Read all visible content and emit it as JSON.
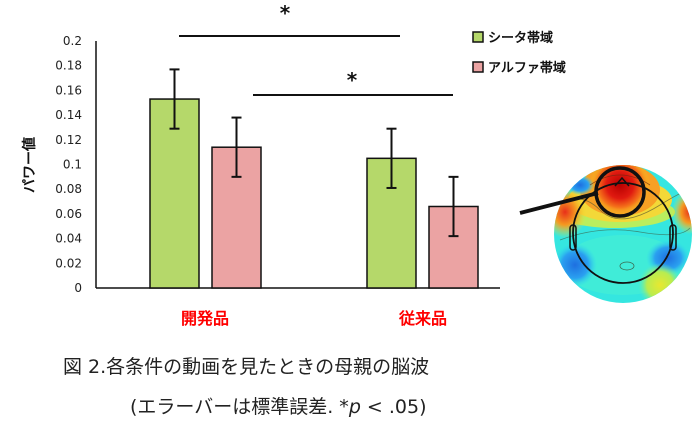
{
  "chart_data": {
    "type": "bar",
    "title": "",
    "xlabel": "",
    "ylabel": "パワー値",
    "ylim": [
      0,
      0.2
    ],
    "yticks": [
      "0",
      "0.02",
      "0.04",
      "0.06",
      "0.08",
      "0.1",
      "0.12",
      "0.14",
      "0.16",
      "0.18",
      "0.2"
    ],
    "categories": [
      "開発品",
      "従来品"
    ],
    "series": [
      {
        "name": "シータ帯域",
        "color": "#b5d86a",
        "values": [
          0.153,
          0.105
        ],
        "errors": [
          0.024,
          0.024
        ]
      },
      {
        "name": "アルファ帯域",
        "color": "#eba3a3",
        "values": [
          0.114,
          0.066
        ],
        "errors": [
          0.024,
          0.024
        ]
      }
    ],
    "legend_position": "top-right",
    "grid": false,
    "annotations": [
      {
        "text": "*",
        "between": [
          "開発品 シータ帯域",
          "従来品 シータ帯域"
        ]
      },
      {
        "text": "*",
        "between": [
          "開発品 アルファ帯域",
          "従来品 アルファ帯域"
        ]
      }
    ],
    "category_label_color": "#ff0000"
  },
  "caption": {
    "line1": "図 2.各条件の動画を見たときの母親の脳波",
    "line2_prefix": "(エラーバーは標準誤差. *",
    "line2_p": "p",
    "line2_suffix": " < .05)"
  },
  "inset": {
    "description": "EEG topographic map with frontal region highlighted",
    "icon": "brain-topomap-icon"
  }
}
